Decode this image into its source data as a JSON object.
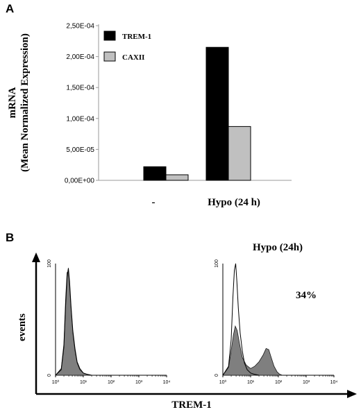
{
  "panel_a": {
    "label": "A"
  },
  "panel_b": {
    "label": "B"
  },
  "chart_data": [
    {
      "type": "bar",
      "panel": "A",
      "ylabel_line1": "mRNA",
      "ylabel_line2": "(Mean Normalized Expression)",
      "ylim": [
        0,
        0.00025
      ],
      "yticks": [
        0,
        5e-05,
        0.0001,
        0.00015,
        0.0002,
        0.00025
      ],
      "ytick_labels": [
        "0,00E+00",
        "5,00E-05",
        "1,00E-04",
        "1,50E-04",
        "2,00E-04",
        "2,50E-04"
      ],
      "categories": [
        "-",
        "Hypo (24 h)"
      ],
      "series": [
        {
          "name": "TREM-1",
          "color": "#000000",
          "values": [
            2.2e-05,
            0.000215
          ]
        },
        {
          "name": "CAXII",
          "color": "#c0c0c0",
          "values": [
            9e-06,
            8.7e-05
          ]
        }
      ],
      "legend": "top-left",
      "grid": false
    },
    {
      "type": "area",
      "panel": "B",
      "ylabel": "events",
      "xlabel": "TREM-1",
      "x_scale": "log",
      "xlim": [
        1,
        10000
      ],
      "ylim": [
        0,
        100
      ],
      "plots": [
        {
          "title": "",
          "annotation": "",
          "xticks": [
            "10⁰",
            "10¹",
            "10²",
            "10³",
            "10⁴"
          ],
          "yticks": [
            "0",
            "100"
          ],
          "filled": {
            "x": [
              1,
              1.6,
              2,
              2.3,
              2.6,
              2.9,
              3.2,
              3.6,
              4.2,
              5,
              6,
              7.5,
              10,
              13,
              20
            ],
            "y": [
              0,
              6,
              28,
              68,
              92,
              93,
              80,
              60,
              38,
              22,
              11,
              5,
              2,
              1,
              0
            ]
          },
          "outline": {
            "x": [
              1,
              1.6,
              2,
              2.3,
              2.6,
              2.9,
              3.2,
              3.6,
              4.2,
              5,
              6,
              7.5,
              10,
              13,
              20
            ],
            "y": [
              0,
              5,
              25,
              62,
              88,
              96,
              84,
              62,
              40,
              24,
              12,
              6,
              2,
              1,
              0
            ]
          }
        },
        {
          "title": "Hypo (24h)",
          "annotation": "34%",
          "xticks": [
            "10⁰",
            "10¹",
            "10²",
            "10³",
            "10⁴"
          ],
          "yticks": [
            "0",
            "100"
          ],
          "filled": {
            "x": [
              1,
              1.6,
              2,
              2.4,
              2.8,
              3.3,
              4,
              5,
              7,
              10,
              14,
              20,
              28,
              36,
              45,
              55,
              70,
              90,
              110,
              140
            ],
            "y": [
              0,
              7,
              22,
              36,
              44,
              40,
              28,
              16,
              9,
              6,
              8,
              12,
              18,
              24,
              23,
              16,
              8,
              3,
              1,
              0
            ]
          },
          "outline": {
            "x": [
              1,
              1.6,
              2,
              2.3,
              2.6,
              2.9,
              3.2,
              3.6,
              4.2,
              5,
              6,
              7.5,
              10,
              13,
              20
            ],
            "y": [
              0,
              8,
              32,
              70,
              94,
              100,
              84,
              60,
              38,
              22,
              11,
              5,
              2,
              1,
              0
            ]
          }
        }
      ]
    }
  ]
}
